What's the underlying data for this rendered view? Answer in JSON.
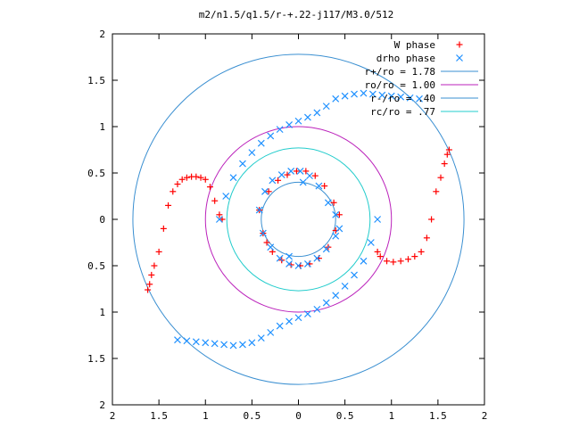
{
  "chart_data": {
    "type": "scatter",
    "title": "m2/n1.5/q1.5/r-+.22-j117/M3.0/512",
    "xlabel": "",
    "ylabel": "",
    "xlim": [
      -2,
      2
    ],
    "ylim": [
      -2,
      2
    ],
    "x_ticks": [
      -2,
      -1.5,
      -1,
      -0.5,
      0,
      0.5,
      1,
      1.5,
      2
    ],
    "y_ticks": [
      -2,
      -1.5,
      -1,
      -0.5,
      0,
      0.5,
      1,
      1.5,
      2
    ],
    "x_tick_labels": [
      "2",
      "1.5",
      "1",
      "0.5",
      "0",
      "0.5",
      "1",
      "1.5",
      "2"
    ],
    "y_tick_labels": [
      "2",
      "1.5",
      "1",
      "0.5",
      "0",
      "0.5",
      "1",
      "1.5",
      "2"
    ],
    "grid": false,
    "legend_position": "top-right",
    "series": [
      {
        "name": "W phase",
        "kind": "points",
        "marker": "plus",
        "color": "#ff0000",
        "x": [
          -1.62,
          -1.6,
          -1.58,
          -1.55,
          -1.5,
          -1.45,
          -1.4,
          -1.35,
          -1.3,
          -1.25,
          -1.2,
          -1.15,
          -1.1,
          -1.05,
          -1.0,
          -0.95,
          -0.9,
          -0.85,
          -0.82,
          1.62,
          1.6,
          1.57,
          1.53,
          1.48,
          1.43,
          1.38,
          1.32,
          1.25,
          1.18,
          1.1,
          1.02,
          0.95,
          0.88,
          0.85,
          -0.42,
          -0.32,
          -0.22,
          -0.12,
          -0.02,
          0.08,
          0.18,
          0.28,
          0.38,
          0.44,
          -0.38,
          -0.34,
          -0.28,
          -0.18,
          -0.08,
          0.02,
          0.12,
          0.22,
          0.32,
          0.4
        ],
        "y": [
          -0.76,
          -0.7,
          -0.6,
          -0.5,
          -0.35,
          -0.1,
          0.15,
          0.3,
          0.38,
          0.43,
          0.45,
          0.46,
          0.46,
          0.45,
          0.43,
          0.35,
          0.2,
          0.05,
          0.0,
          0.75,
          0.7,
          0.6,
          0.45,
          0.3,
          0.0,
          -0.2,
          -0.35,
          -0.4,
          -0.43,
          -0.45,
          -0.46,
          -0.45,
          -0.4,
          -0.35,
          0.1,
          0.3,
          0.42,
          0.48,
          0.52,
          0.52,
          0.47,
          0.36,
          0.18,
          0.05,
          -0.15,
          -0.25,
          -0.35,
          -0.44,
          -0.49,
          -0.5,
          -0.48,
          -0.42,
          -0.3,
          -0.12
        ]
      },
      {
        "name": "drho phase",
        "kind": "points",
        "marker": "cross",
        "color": "#1e90ff",
        "x": [
          -0.85,
          -0.78,
          -0.7,
          -0.6,
          -0.5,
          -0.4,
          -0.3,
          -0.2,
          -0.1,
          0.0,
          0.1,
          0.2,
          0.3,
          0.4,
          0.5,
          0.6,
          0.7,
          0.8,
          0.9,
          1.0,
          1.1,
          1.2,
          1.3,
          0.85,
          0.78,
          0.7,
          0.6,
          0.5,
          0.4,
          0.3,
          0.2,
          0.1,
          0.0,
          -0.1,
          -0.2,
          -0.3,
          -0.4,
          -0.5,
          -0.6,
          -0.7,
          -0.8,
          -0.9,
          -1.0,
          -1.1,
          -1.2,
          -1.3,
          -0.42,
          -0.36,
          -0.28,
          -0.18,
          -0.08,
          0.02,
          0.12,
          0.22,
          0.32,
          0.4,
          0.44,
          -0.38,
          -0.3,
          -0.2,
          -0.1,
          0.0,
          0.1,
          0.2,
          0.3,
          0.4,
          -0.1,
          0.05
        ],
        "y": [
          0.0,
          0.25,
          0.45,
          0.6,
          0.72,
          0.82,
          0.9,
          0.97,
          1.02,
          1.06,
          1.1,
          1.15,
          1.22,
          1.3,
          1.33,
          1.35,
          1.36,
          1.35,
          1.34,
          1.33,
          1.32,
          1.31,
          1.3,
          0.0,
          -0.25,
          -0.45,
          -0.6,
          -0.72,
          -0.82,
          -0.9,
          -0.97,
          -1.02,
          -1.06,
          -1.1,
          -1.15,
          -1.22,
          -1.28,
          -1.33,
          -1.35,
          -1.36,
          -1.35,
          -1.34,
          -1.33,
          -1.32,
          -1.31,
          -1.3,
          0.1,
          0.3,
          0.42,
          0.48,
          0.52,
          0.52,
          0.47,
          0.36,
          0.18,
          0.05,
          -0.1,
          -0.15,
          -0.3,
          -0.42,
          -0.48,
          -0.5,
          -0.48,
          -0.42,
          -0.32,
          -0.18,
          -0.4,
          0.4
        ]
      },
      {
        "name": "r+/ro = 1.78",
        "kind": "circle",
        "radius": 1.78,
        "color": "#3a8fd1"
      },
      {
        "name": "ro/ro = 1.00",
        "kind": "circle",
        "radius": 1.0,
        "color": "#bb22bb"
      },
      {
        "name": "r-/ro = .40",
        "kind": "circle",
        "radius": 0.4,
        "color": "#3a8fd1"
      },
      {
        "name": "rc/ro = .77",
        "kind": "circle",
        "radius": 0.77,
        "color": "#22cccc"
      }
    ]
  }
}
